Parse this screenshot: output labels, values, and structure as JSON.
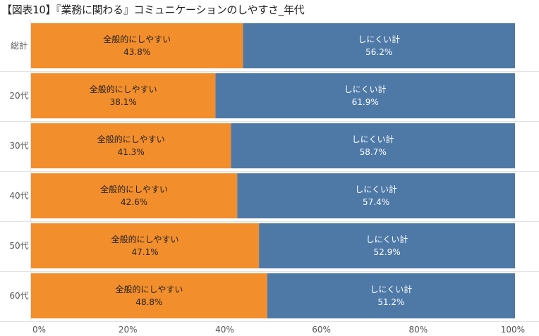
{
  "title": "【図表10】『業務に関わる』コミュニケーションのしやすさ_年代",
  "chart_data": {
    "type": "bar",
    "orientation": "horizontal",
    "stacked": "percent",
    "title": "【図表10】『業務に関わる』コミュニケーションのしやすさ_年代",
    "categories": [
      "総計",
      "20代",
      "30代",
      "40代",
      "50代",
      "60代"
    ],
    "series": [
      {
        "name": "全般的にしやすい",
        "values": [
          43.8,
          38.1,
          41.3,
          42.6,
          47.1,
          48.8
        ],
        "labels": [
          "43.8%",
          "38.1%",
          "41.3%",
          "42.6%",
          "47.1%",
          "48.8%"
        ],
        "color": "#F28E2B"
      },
      {
        "name": "しにくい計",
        "values": [
          56.2,
          61.9,
          58.7,
          57.4,
          52.9,
          51.2
        ],
        "labels": [
          "56.2%",
          "61.9%",
          "58.7%",
          "57.4%",
          "52.9%",
          "51.2%"
        ],
        "color": "#4E79A7"
      }
    ],
    "xlim": [
      0,
      100
    ],
    "xticks": [
      0,
      20,
      40,
      60,
      80,
      100
    ],
    "xtick_labels": [
      "0%",
      "20%",
      "40%",
      "60%",
      "80%",
      "100%"
    ],
    "xlabel": "",
    "ylabel": "",
    "legend": "none",
    "grid": false
  }
}
